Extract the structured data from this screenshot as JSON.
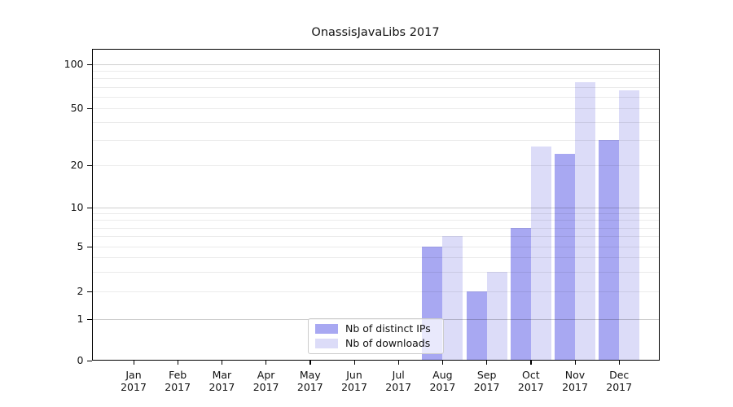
{
  "title": "OnassisJavaLibs 2017",
  "x_axis": {
    "months": [
      "Jan",
      "Feb",
      "Mar",
      "Apr",
      "May",
      "Jun",
      "Jul",
      "Aug",
      "Sep",
      "Oct",
      "Nov",
      "Dec"
    ],
    "year_label": "2017"
  },
  "y_axis": {
    "tick_values": [
      100,
      50,
      20,
      10,
      5,
      2,
      1,
      0
    ],
    "tick_labels": [
      "100",
      "50",
      "20",
      "10",
      "5",
      "2",
      "1",
      "0"
    ]
  },
  "legend": {
    "items": [
      {
        "label": "Nb of distinct IPs",
        "color": "#a8a8f2"
      },
      {
        "label": "Nb of downloads",
        "color": "#dcdcf8"
      }
    ]
  },
  "chart_data": {
    "type": "bar",
    "title": "OnassisJavaLibs 2017",
    "categories": [
      "Jan 2017",
      "Feb 2017",
      "Mar 2017",
      "Apr 2017",
      "May 2017",
      "Jun 2017",
      "Jul 2017",
      "Aug 2017",
      "Sep 2017",
      "Oct 2017",
      "Nov 2017",
      "Dec 2017"
    ],
    "series": [
      {
        "name": "Nb of distinct IPs",
        "key": "distinct-ips",
        "color": "#a8a8f2",
        "values": [
          0,
          0,
          0,
          0,
          0,
          0,
          0,
          5,
          2,
          7,
          24,
          30
        ]
      },
      {
        "name": "Nb of downloads",
        "key": "downloads",
        "color": "#dcdcf8",
        "values": [
          0,
          0,
          0,
          0,
          0,
          0,
          0,
          6,
          3,
          27,
          75,
          66
        ]
      }
    ],
    "xlabel": "",
    "ylabel": "",
    "yscale": "log-like",
    "yticks": [
      0,
      1,
      2,
      5,
      10,
      20,
      50,
      100
    ],
    "ylim": [
      0,
      120
    ],
    "grid": "on",
    "legend_position": "lower center"
  }
}
